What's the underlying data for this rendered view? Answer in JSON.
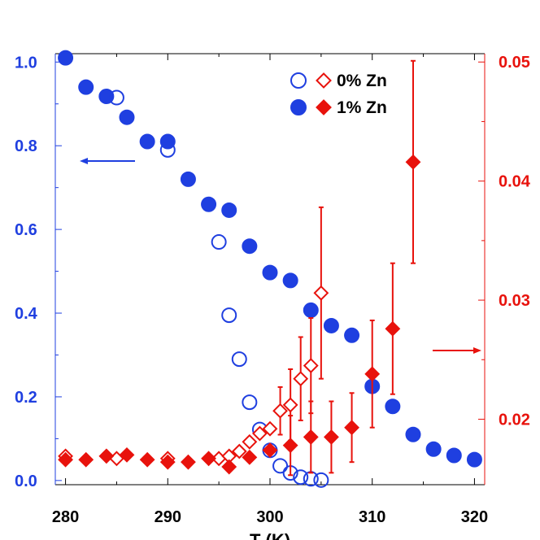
{
  "chart_data": {
    "type": "scatter",
    "xlabel": "T (K)",
    "xlim": [
      279,
      321
    ],
    "x_ticks": [
      "280",
      "290",
      "300",
      "310",
      "320"
    ],
    "y_left": {
      "lim": [
        -0.01,
        1.02
      ],
      "ticks": [
        "0.0",
        "0.2",
        "0.4",
        "0.6",
        "0.8",
        "1.0"
      ],
      "color": "#1f3fe0"
    },
    "y_right": {
      "lim": [
        0.0145,
        0.0507
      ],
      "ticks": [
        "0.02",
        "0.03",
        "0.04",
        "0.05"
      ],
      "color": "#e8120c"
    },
    "legend": [
      {
        "label": "0% Zn",
        "markers": [
          "open-circle",
          "open-diamond"
        ]
      },
      {
        "label": "1% Zn",
        "markers": [
          "filled-circle",
          "filled-diamond"
        ]
      }
    ],
    "series": [
      {
        "name": "0% Zn",
        "axis": "left",
        "marker": "open-circle",
        "color": "#1f3fe0",
        "x": [
          285,
          290,
          295,
          296,
          297,
          298,
          299,
          300,
          301,
          302,
          303,
          304,
          305
        ],
        "y": [
          0.915,
          0.79,
          0.57,
          0.395,
          0.29,
          0.187,
          0.122,
          0.072,
          0.035,
          0.018,
          0.008,
          0.004,
          0.001
        ]
      },
      {
        "name": "1% Zn",
        "axis": "left",
        "marker": "filled-circle",
        "color": "#1f3fe0",
        "x": [
          280,
          282,
          284,
          286,
          288,
          290,
          292,
          294,
          296,
          298,
          300,
          302,
          304,
          306,
          308,
          310,
          312,
          314,
          316,
          318,
          320
        ],
        "y": [
          1.01,
          0.94,
          0.918,
          0.868,
          0.81,
          0.81,
          0.72,
          0.66,
          0.646,
          0.56,
          0.497,
          0.478,
          0.407,
          0.37,
          0.347,
          0.225,
          0.177,
          0.11,
          0.075,
          0.06,
          0.05
        ]
      },
      {
        "name": "0% Zn",
        "axis": "right",
        "marker": "open-diamond",
        "color": "#e8120c",
        "x": [
          280,
          285,
          290,
          295,
          296,
          297,
          298,
          299,
          300,
          301,
          302,
          303,
          304,
          305
        ],
        "y": [
          0.0169,
          0.0167,
          0.0167,
          0.0167,
          0.0169,
          0.0173,
          0.0181,
          0.0188,
          0.0192,
          0.0207,
          0.0212,
          0.0234,
          0.0245,
          0.0306
        ],
        "err": [
          0,
          0,
          0,
          0,
          0,
          0,
          0,
          0,
          0,
          0.002,
          0.003,
          0.0035,
          0.004,
          0.0072
        ]
      },
      {
        "name": "1% Zn",
        "axis": "right",
        "marker": "filled-diamond",
        "color": "#e8120c",
        "x": [
          280,
          282,
          284,
          286,
          288,
          290,
          292,
          294,
          296,
          298,
          300,
          302,
          304,
          306,
          308,
          310,
          312,
          314
        ],
        "y": [
          0.0166,
          0.0166,
          0.0169,
          0.017,
          0.0166,
          0.0164,
          0.0164,
          0.0167,
          0.016,
          0.0168,
          0.0174,
          0.0178,
          0.0185,
          0.0185,
          0.0193,
          0.0238,
          0.0276,
          0.0416
        ],
        "err": [
          0,
          0,
          0,
          0,
          0,
          0,
          0,
          0,
          0,
          0,
          0,
          0.0025,
          0.003,
          0.003,
          0.0029,
          0.0045,
          0.0055,
          0.0085
        ]
      }
    ]
  }
}
